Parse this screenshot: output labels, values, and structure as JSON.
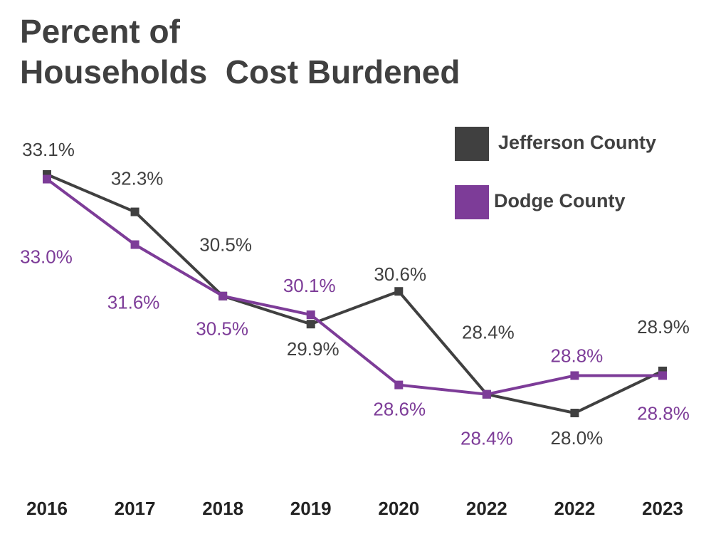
{
  "chart_data": {
    "type": "line",
    "title": [
      "Percent of",
      "Households  Cost Burdened"
    ],
    "categories": [
      "2016",
      "2017",
      "2018",
      "2019",
      "2020",
      "2022",
      "2022",
      "2023"
    ],
    "series": [
      {
        "name": "Jefferson County",
        "color": "#404040",
        "values": [
          33.1,
          32.3,
          30.5,
          29.9,
          30.6,
          28.4,
          28.0,
          28.9
        ],
        "value_labels": [
          "33.1%",
          "32.3%",
          "30.5%",
          "29.9%",
          "30.6%",
          "28.4%",
          "28.0%",
          "28.9%"
        ]
      },
      {
        "name": "Dodge County",
        "color": "#7d3c98",
        "values": [
          33.0,
          31.6,
          30.5,
          30.1,
          28.6,
          28.4,
          28.8,
          28.8
        ],
        "value_labels": [
          "33.0%",
          "31.6%",
          "30.5%",
          "30.1%",
          "28.6%",
          "28.4%",
          "28.8%",
          "28.8%"
        ]
      }
    ],
    "legend": "top-right"
  }
}
